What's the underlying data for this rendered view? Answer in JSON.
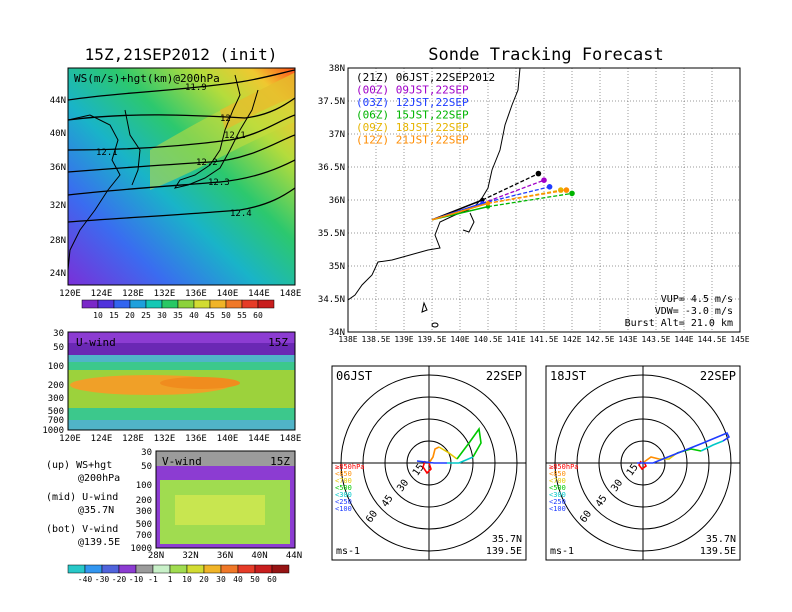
{
  "left": {
    "title": "15Z,21SEP2012 (init)",
    "top_panel": {
      "label": "WS(m/s)+hgt(km)@200hPa",
      "lat_ticks": [
        "44N",
        "40N",
        "36N",
        "32N",
        "28N",
        "24N"
      ],
      "lon_ticks": [
        "120E",
        "124E",
        "128E",
        "132E",
        "136E",
        "140E",
        "144E",
        "148E"
      ],
      "contour_labels": [
        "11.9",
        "12",
        "12.1",
        "12.1",
        "12.2",
        "12.3",
        "12.4"
      ],
      "colorbar_ticks": [
        "10",
        "15",
        "20",
        "25",
        "30",
        "35",
        "40",
        "45",
        "50",
        "55",
        "60"
      ]
    },
    "u_panel": {
      "label": "U-wind",
      "time": "15Z",
      "p_ticks": [
        "30",
        "50",
        "100",
        "200",
        "300",
        "500",
        "700",
        "1000"
      ],
      "lon_ticks": [
        "120E",
        "124E",
        "128E",
        "132E",
        "136E",
        "140E",
        "144E",
        "148E"
      ]
    },
    "v_panel": {
      "label": "V-wind",
      "time": "15Z",
      "p_ticks": [
        "30",
        "50",
        "100",
        "200",
        "300",
        "500",
        "700",
        "1000"
      ],
      "lat_ticks": [
        "28N",
        "32N",
        "36N",
        "40N",
        "44N"
      ]
    },
    "notes": [
      "(up) WS+hgt",
      "@200hPa",
      "(mid) U-wind",
      "@35.7N",
      "(bot) V-wind",
      "@139.5E"
    ],
    "bottom_colorbar_ticks": [
      "-40",
      "-30",
      "-20",
      "-10",
      "-1",
      "1",
      "10",
      "20",
      "30",
      "40",
      "50",
      "60"
    ]
  },
  "right": {
    "title": "Sonde Tracking Forecast",
    "map": {
      "lat_ticks": [
        "38N",
        "37.5N",
        "37N",
        "36.5N",
        "36N",
        "35.5N",
        "35N",
        "34.5N",
        "34N"
      ],
      "lon_ticks": [
        "138E",
        "138.5E",
        "139E",
        "139.5E",
        "140E",
        "140.5E",
        "141E",
        "141.5E",
        "142E",
        "142.5E",
        "143E",
        "143.5E",
        "144E",
        "144.5E",
        "145E"
      ],
      "legend": [
        {
          "text": "(21Z) 06JST,22SEP2012",
          "color": "#000000"
        },
        {
          "text": "(00Z) 09JST,22SEP",
          "color": "#a000c8"
        },
        {
          "text": "(03Z) 12JST,22SEP",
          "color": "#1e3cff"
        },
        {
          "text": "(06Z) 15JST,22SEP",
          "color": "#00b400"
        },
        {
          "text": "(09Z) 18JST,22SEP",
          "color": "#e6b400"
        },
        {
          "text": "(12Z) 21JST,22SEP",
          "color": "#ff8c00"
        }
      ],
      "params": [
        "VUP= 4.5 m/s",
        "VDW= -3.0 m/s",
        "Burst Alt= 21.0 km"
      ]
    },
    "hodo_left": {
      "time": "06JST",
      "date": "22SEP",
      "rings": [
        "15",
        "30",
        "45",
        "60"
      ],
      "unit": "ms-1",
      "loc_lat": "35.7N",
      "loc_lon": "139.5E"
    },
    "hodo_right": {
      "time": "18JST",
      "date": "22SEP",
      "rings": [
        "15",
        "30",
        "45",
        "60"
      ],
      "unit": "ms-1",
      "loc_lat": "35.7N",
      "loc_lon": "139.5E"
    },
    "hodo_legend": [
      {
        "text": "≥850hPa",
        "color": "#ff0000"
      },
      {
        "text": "<850",
        "color": "#ff8c00"
      },
      {
        "text": "<700",
        "color": "#e6c800"
      },
      {
        "text": "<500",
        "color": "#00c800"
      },
      {
        "text": "<300",
        "color": "#00c8c8"
      },
      {
        "text": "<250",
        "color": "#1e3cff"
      },
      {
        "text": "<100",
        "color": "#1e3cff"
      }
    ]
  },
  "chart_data": [
    {
      "type": "heatmap",
      "title": "WS(m/s)+hgt(km)@200hPa",
      "x_range_deg": [
        120,
        149
      ],
      "y_range_deg": [
        22,
        47
      ],
      "contours_km": [
        11.9,
        12.0,
        12.1,
        12.2,
        12.3,
        12.4
      ]
    },
    {
      "type": "line",
      "title": "Sonde Tracking Forecast",
      "series": [
        {
          "name": "(21Z) 06JST,22SEP2012",
          "x": [
            139.5,
            140.4,
            141.4
          ],
          "y": [
            35.7,
            36.0,
            36.4
          ]
        },
        {
          "name": "(00Z) 09JST,22SEP",
          "x": [
            139.5,
            140.4,
            141.5
          ],
          "y": [
            35.7,
            35.95,
            36.3
          ]
        },
        {
          "name": "(03Z) 12JST,22SEP",
          "x": [
            139.5,
            140.4,
            141.6
          ],
          "y": [
            35.7,
            35.95,
            36.2
          ]
        },
        {
          "name": "(06Z) 15JST,22SEP",
          "x": [
            139.5,
            140.5,
            142.0
          ],
          "y": [
            35.7,
            35.9,
            36.1
          ]
        },
        {
          "name": "(09Z) 18JST,22SEP",
          "x": [
            139.5,
            140.5,
            141.8
          ],
          "y": [
            35.7,
            35.95,
            36.15
          ]
        },
        {
          "name": "(12Z) 21JST,22SEP",
          "x": [
            139.5,
            140.5,
            141.9
          ],
          "y": [
            35.7,
            35.95,
            36.15
          ]
        }
      ]
    }
  ]
}
